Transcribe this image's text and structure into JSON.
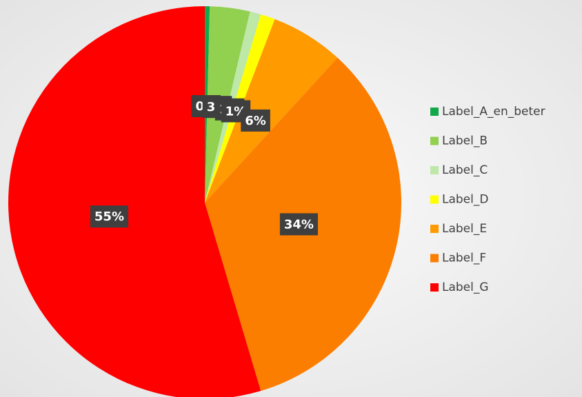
{
  "chart_data": {
    "type": "pie",
    "categories": [
      "Label_A_en_beter",
      "Label_B",
      "Label_C",
      "Label_D",
      "Label_E",
      "Label_F",
      "Label_G"
    ],
    "values": [
      0.4,
      3.3,
      0.9,
      1.2,
      6,
      33.6,
      54.6
    ],
    "value_labels": [
      "0%",
      "3%",
      "1%",
      "1%",
      "6%",
      "34%",
      "55%"
    ],
    "colors": [
      "#12a84a",
      "#92d050",
      "#bde8a8",
      "#ffff00",
      "#ff9a00",
      "#fb7e00",
      "#ff0000"
    ],
    "legend": "right"
  }
}
